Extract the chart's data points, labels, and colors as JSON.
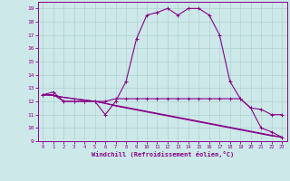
{
  "xlabel": "Windchill (Refroidissement éolien,°C)",
  "bg_color": "#cce8e8",
  "line_color": "#880088",
  "grid_color": "#aacccc",
  "xlim": [
    -0.5,
    23.5
  ],
  "ylim": [
    9,
    19.5
  ],
  "yticks": [
    9,
    10,
    11,
    12,
    13,
    14,
    15,
    16,
    17,
    18,
    19
  ],
  "xticks": [
    0,
    1,
    2,
    3,
    4,
    5,
    6,
    7,
    8,
    9,
    10,
    11,
    12,
    13,
    14,
    15,
    16,
    17,
    18,
    19,
    20,
    21,
    22,
    23
  ],
  "line1_x": [
    0,
    1,
    2,
    3,
    4,
    5,
    6,
    7,
    8,
    9,
    10,
    11,
    12,
    13,
    14,
    15,
    16,
    17,
    18,
    19,
    20,
    21,
    22,
    23
  ],
  "line1_y": [
    12.5,
    12.7,
    12.0,
    12.0,
    12.0,
    12.0,
    11.0,
    12.0,
    13.5,
    16.7,
    18.5,
    18.7,
    19.0,
    18.5,
    19.0,
    19.0,
    18.5,
    17.0,
    13.5,
    12.2,
    11.5,
    10.0,
    9.7,
    9.3
  ],
  "line2_x": [
    0,
    1,
    2,
    3,
    4,
    5,
    6,
    7,
    8,
    9,
    10,
    11,
    12,
    13,
    14,
    15,
    16,
    17,
    18,
    19,
    20,
    21,
    22,
    23
  ],
  "line2_y": [
    12.5,
    12.5,
    12.0,
    12.0,
    12.0,
    12.0,
    12.0,
    12.2,
    12.2,
    12.2,
    12.2,
    12.2,
    12.2,
    12.2,
    12.2,
    12.2,
    12.2,
    12.2,
    12.2,
    12.2,
    11.5,
    11.4,
    11.0,
    11.0
  ],
  "line3_x": [
    0,
    1,
    2,
    3,
    4,
    5,
    6,
    7,
    8,
    9,
    10,
    11,
    12,
    13,
    14,
    15,
    16,
    17,
    18,
    19,
    20,
    21,
    22,
    23
  ],
  "line3_y": [
    12.5,
    12.45,
    12.3,
    12.2,
    12.1,
    12.0,
    11.85,
    11.7,
    11.55,
    11.4,
    11.25,
    11.1,
    10.95,
    10.8,
    10.65,
    10.5,
    10.35,
    10.2,
    10.05,
    9.9,
    9.75,
    9.6,
    9.45,
    9.3
  ],
  "line4_x": [
    0,
    1,
    2,
    3,
    4,
    5,
    6,
    7,
    8,
    9,
    10,
    11,
    12,
    13,
    14,
    15,
    16,
    17,
    18,
    19,
    20,
    21,
    22,
    23
  ],
  "line4_y": [
    12.5,
    12.45,
    12.3,
    12.2,
    12.1,
    12.0,
    11.85,
    11.65,
    11.5,
    11.35,
    11.2,
    11.05,
    10.9,
    10.75,
    10.6,
    10.45,
    10.3,
    10.15,
    10.0,
    9.85,
    9.7,
    9.55,
    9.4,
    9.3
  ]
}
